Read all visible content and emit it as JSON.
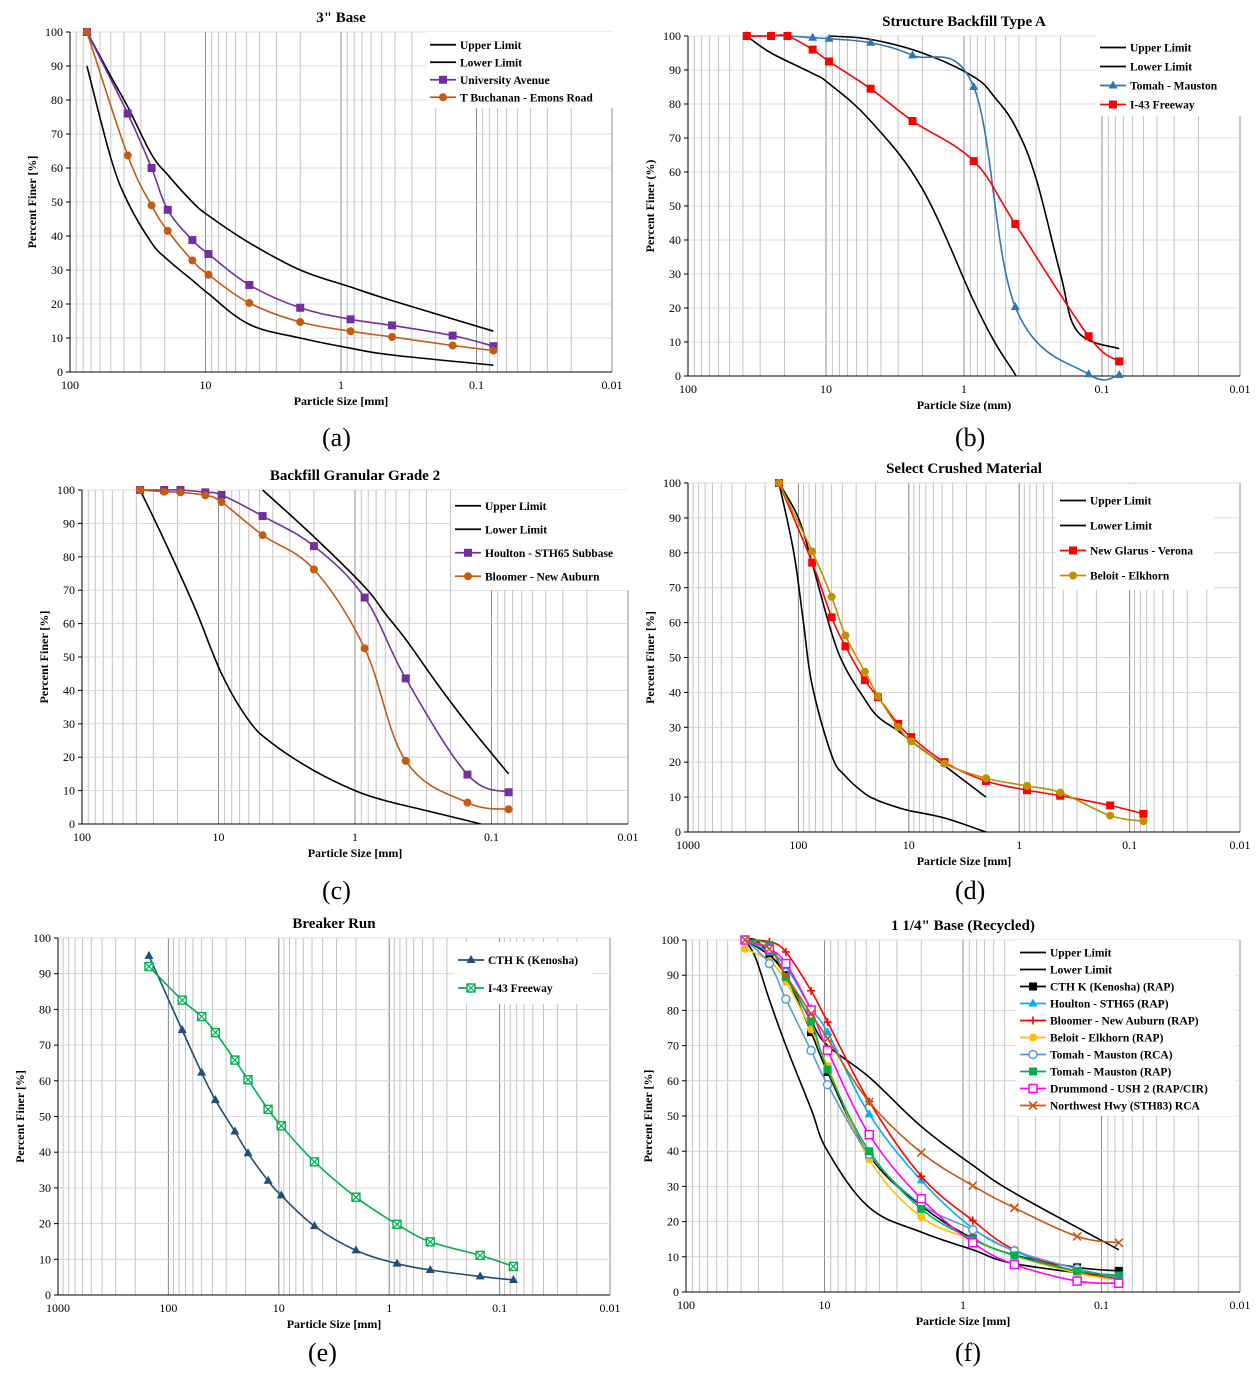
{
  "chart_data": [
    {
      "id": "a",
      "type": "line",
      "panel_label": "(a)",
      "title": "3\" Base",
      "xlabel": "Particle Size [mm]",
      "ylabel": "Percent Finer [%]",
      "x_scale": "log",
      "x_reversed": true,
      "xlim": [
        100,
        0.01
      ],
      "ylim": [
        0,
        100
      ],
      "yticks": [
        0,
        10,
        20,
        30,
        40,
        50,
        60,
        70,
        80,
        90,
        100
      ],
      "xtick_labels": [
        "100",
        "10",
        "1",
        "0.1",
        "0.01"
      ],
      "legend_position": "top-right",
      "series": [
        {
          "name": "Upper Limit",
          "color": "#000000",
          "marker": "none",
          "x": [
            75,
            50,
            37.5,
            25,
            19,
            12.5,
            9.5,
            4.75,
            2,
            0.85,
            0.42,
            0.075
          ],
          "y": [
            100,
            87,
            78,
            64,
            58,
            50,
            46,
            38,
            30,
            25,
            21,
            12
          ]
        },
        {
          "name": "Lower Limit",
          "color": "#000000",
          "marker": "none",
          "x": [
            75,
            50,
            37.5,
            25,
            19,
            12.5,
            9.5,
            4.75,
            2,
            0.85,
            0.42,
            0.075
          ],
          "y": [
            90,
            63,
            50,
            38,
            33,
            27,
            23,
            14,
            10,
            7,
            5,
            2
          ]
        },
        {
          "name": "University Avenue",
          "color": "#7030A0",
          "marker": "square",
          "x": [
            75,
            37.5,
            25,
            19,
            12.5,
            9.5,
            4.75,
            2,
            0.85,
            0.42,
            0.15,
            0.075
          ],
          "y": [
            100,
            76,
            60,
            47.7,
            38.8,
            34.7,
            25.6,
            18.9,
            15.5,
            13.7,
            10.7,
            7.6
          ]
        },
        {
          "name": "T Buchanan - Emons Road",
          "color": "#C55A11",
          "marker": "circle",
          "x": [
            75,
            37.5,
            25,
            19,
            12.5,
            9.5,
            4.75,
            2,
            0.85,
            0.42,
            0.15,
            0.075
          ],
          "y": [
            100,
            63.7,
            49,
            41.5,
            32.8,
            28.6,
            20.3,
            14.7,
            12,
            10.3,
            7.8,
            6.3
          ]
        }
      ]
    },
    {
      "id": "b",
      "type": "line",
      "panel_label": "(b)",
      "title": "Structure Backfill Type A",
      "xlabel": "Particle Size (mm)",
      "ylabel": "Percent Finer (%)",
      "x_scale": "log",
      "x_reversed": true,
      "xlim": [
        100,
        0.01
      ],
      "ylim": [
        0,
        100
      ],
      "yticks": [
        0,
        10,
        20,
        30,
        40,
        50,
        60,
        70,
        80,
        90,
        100
      ],
      "xtick_labels": [
        "100",
        "10",
        "1",
        "0.1",
        "0.01"
      ],
      "legend_position": "top-right",
      "series": [
        {
          "name": "Upper Limit",
          "color": "#000000",
          "marker": "none",
          "x": [
            9.5,
            4.75,
            2,
            0.85,
            0.6,
            0.42,
            0.3,
            0.2,
            0.15,
            0.075
          ],
          "y": [
            100,
            99,
            95,
            88,
            82,
            73,
            58,
            30,
            13,
            8
          ]
        },
        {
          "name": "Lower Limit",
          "color": "#000000",
          "marker": "none",
          "x": [
            37.5,
            25,
            12.5,
            9.5,
            4.75,
            2,
            0.85,
            0.6,
            0.45,
            0.42
          ],
          "y": [
            100,
            95,
            89,
            86,
            75,
            55,
            22,
            10,
            2,
            0
          ]
        },
        {
          "name": "Tomah - Mauston",
          "color": "#2E75B6",
          "marker": "triangle",
          "x": [
            37.5,
            25,
            19,
            12.5,
            9.5,
            4.75,
            2.36,
            0.85,
            0.425,
            0.125,
            0.075
          ],
          "y": [
            100,
            100,
            100,
            99.5,
            99.2,
            98,
            94.3,
            85,
            20.3,
            0.5,
            0.3
          ]
        },
        {
          "name": "I-43 Freeway",
          "color": "#FF0000",
          "marker": "square",
          "x": [
            37.5,
            25,
            19,
            12.5,
            9.5,
            4.75,
            2.36,
            0.85,
            0.425,
            0.125,
            0.075
          ],
          "y": [
            100,
            100,
            100,
            96,
            92.5,
            84.5,
            75,
            63.2,
            44.7,
            11.7,
            4.3
          ]
        }
      ]
    },
    {
      "id": "c",
      "type": "line",
      "panel_label": "(c)",
      "title": "Backfill Granular Grade 2",
      "xlabel": "Particle Size [mm]",
      "ylabel": "Percent Finer [%]",
      "x_scale": "log",
      "x_reversed": true,
      "xlim": [
        100,
        0.01
      ],
      "ylim": [
        0,
        100
      ],
      "yticks": [
        0,
        10,
        20,
        30,
        40,
        50,
        60,
        70,
        80,
        90,
        100
      ],
      "xtick_labels": [
        "100",
        "10",
        "1",
        "0.1",
        "0.01"
      ],
      "legend_position": "top-right",
      "series": [
        {
          "name": "Upper Limit",
          "color": "#000000",
          "marker": "none",
          "x": [
            4.75,
            2,
            0.85,
            0.6,
            0.42,
            0.25,
            0.15,
            0.075
          ],
          "y": [
            100,
            86,
            71,
            63,
            55,
            42,
            30,
            15
          ]
        },
        {
          "name": "Lower Limit",
          "color": "#000000",
          "marker": "none",
          "x": [
            37.5,
            25,
            15,
            9.5,
            6,
            4,
            2,
            1,
            0.6,
            0.3,
            0.15,
            0.12
          ],
          "y": [
            100,
            85,
            65,
            45,
            31,
            24,
            16,
            10,
            7,
            4,
            1,
            0
          ]
        },
        {
          "name": "Houlton - STH65 Subbase",
          "color": "#7030A0",
          "marker": "square",
          "x": [
            37.5,
            25,
            19,
            12.5,
            9.5,
            4.75,
            2,
            0.85,
            0.425,
            0.15,
            0.075
          ],
          "y": [
            100,
            100,
            100,
            99.3,
            98.5,
            92.2,
            83.2,
            67.8,
            43.6,
            14.8,
            9.5
          ]
        },
        {
          "name": "Bloomer - New Auburn",
          "color": "#C55A11",
          "marker": "circle",
          "x": [
            37.5,
            25,
            19,
            12.5,
            9.5,
            4.75,
            2,
            0.85,
            0.425,
            0.15,
            0.075
          ],
          "y": [
            100,
            99.5,
            99.3,
            98.4,
            96.4,
            86.5,
            76.2,
            52.6,
            18.9,
            6.4,
            4.4
          ]
        }
      ]
    },
    {
      "id": "d",
      "type": "line",
      "panel_label": "(d)",
      "title": "Select Crushed Material",
      "xlabel": "Particle Size [mm]",
      "ylabel": "Percent Finer [%]",
      "x_scale": "log",
      "x_reversed": true,
      "xlim": [
        1000,
        0.01
      ],
      "ylim": [
        0,
        100
      ],
      "yticks": [
        0,
        10,
        20,
        30,
        40,
        50,
        60,
        70,
        80,
        90,
        100
      ],
      "xtick_labels": [
        "1000",
        "100",
        "10",
        "1",
        "0.1",
        "0.01"
      ],
      "legend_position": "top-right",
      "series": [
        {
          "name": "Upper Limit",
          "color": "#000000",
          "marker": "none",
          "x": [
            150,
            100,
            75,
            50,
            37.5,
            25,
            19,
            12.5,
            9.5,
            4.75,
            2
          ],
          "y": [
            100,
            90,
            77,
            57,
            47,
            38,
            33,
            29,
            26,
            19,
            10
          ]
        },
        {
          "name": "Lower Limit",
          "color": "#000000",
          "marker": "none",
          "x": [
            150,
            110,
            90,
            75,
            50,
            37.5,
            25,
            19,
            12.5,
            9.5,
            4.75,
            2
          ],
          "y": [
            100,
            80,
            60,
            42,
            22,
            16,
            11,
            9,
            7,
            6,
            4,
            0
          ]
        },
        {
          "name": "New Glarus - Verona",
          "color": "#FF0000",
          "marker": "square",
          "x": [
            150,
            75,
            50,
            37.5,
            25,
            19,
            12.5,
            9.5,
            4.75,
            2,
            0.85,
            0.425,
            0.15,
            0.075
          ],
          "y": [
            100,
            77.2,
            61.5,
            53.2,
            43.5,
            38.6,
            31,
            27.2,
            20,
            14.6,
            12,
            10.4,
            7.6,
            5.2
          ]
        },
        {
          "name": "Beloit - Elkhorn",
          "color": "#BF9000",
          "marker": "circle",
          "x": [
            150,
            75,
            50,
            37.5,
            25,
            19,
            12.5,
            9.5,
            4.75,
            2,
            0.85,
            0.425,
            0.15,
            0.075
          ],
          "y": [
            100,
            80.4,
            67.4,
            56.3,
            45.9,
            38.9,
            30.1,
            26,
            19.6,
            15.4,
            13.2,
            11.3,
            4.7,
            3.1
          ]
        }
      ]
    },
    {
      "id": "e",
      "type": "line",
      "panel_label": "(e)",
      "title": "Breaker Run",
      "xlabel": "Particle Size [mm]",
      "ylabel": "Percent Finer [%]",
      "x_scale": "log",
      "x_reversed": true,
      "xlim": [
        1000,
        0.01
      ],
      "ylim": [
        0,
        100
      ],
      "yticks": [
        0,
        10,
        20,
        30,
        40,
        50,
        60,
        70,
        80,
        90,
        100
      ],
      "xtick_labels": [
        "1000",
        "100",
        "10",
        "1",
        "0.1",
        "0.01"
      ],
      "legend_position": "top-right",
      "series": [
        {
          "name": "CTH K (Kenosha)",
          "color": "#1F4E79",
          "marker": "triangle",
          "x": [
            150,
            75,
            50,
            37.5,
            25,
            19,
            12.5,
            9.5,
            4.75,
            2,
            0.85,
            0.425,
            0.15,
            0.075
          ],
          "y": [
            95,
            74.2,
            62.3,
            54.6,
            45.8,
            39.7,
            32,
            27.9,
            19.3,
            12.5,
            8.8,
            7,
            5.2,
            4.2
          ]
        },
        {
          "name": "I-43 Freeway",
          "color": "#00B050",
          "marker": "boxx",
          "x": [
            150,
            75,
            50,
            37.5,
            25,
            19,
            12.5,
            9.5,
            4.75,
            2,
            0.85,
            0.425,
            0.15,
            0.075
          ],
          "y": [
            92,
            82.6,
            78,
            73.5,
            65.8,
            60.3,
            52,
            47.4,
            37.3,
            27.4,
            19.8,
            14.9,
            11.1,
            8
          ]
        }
      ]
    },
    {
      "id": "f",
      "type": "line",
      "panel_label": "(f)",
      "title": "1 1/4\" Base (Recycled)",
      "xlabel": "Particle Size [mm]",
      "ylabel": "Percent Finer [%]",
      "x_scale": "log",
      "x_reversed": true,
      "xlim": [
        100,
        0.01
      ],
      "ylim": [
        0,
        100
      ],
      "yticks": [
        0,
        10,
        20,
        30,
        40,
        50,
        60,
        70,
        80,
        90,
        100
      ],
      "xtick_labels": [
        "100",
        "10",
        "1",
        "0.1",
        "0.01"
      ],
      "legend_position": "top-right",
      "series": [
        {
          "name": "Upper Limit",
          "color": "#000000",
          "marker": "none",
          "x": [
            37.5,
            31.5,
            25,
            19,
            12.5,
            9.5,
            4.75,
            2,
            0.85,
            0.42,
            0.075
          ],
          "y": [
            100,
            100,
            96,
            90,
            77,
            70,
            61,
            47,
            36,
            28,
            12
          ]
        },
        {
          "name": "Lower Limit",
          "color": "#000000",
          "marker": "none",
          "x": [
            37.5,
            31.5,
            25,
            19,
            12.5,
            9.5,
            4.75,
            2,
            0.85,
            0.42,
            0.075
          ],
          "y": [
            100,
            95,
            83,
            70,
            52,
            40,
            24,
            17,
            12,
            8,
            4
          ]
        },
        {
          "name": "CTH K (Kenosha) (RAP)",
          "color": "#000000",
          "marker": "square",
          "x": [
            37.5,
            25,
            19,
            12.5,
            9.5,
            4.75,
            2,
            0.85,
            0.425,
            0.15,
            0.075
          ],
          "y": [
            100,
            95.6,
            90,
            73.8,
            62.5,
            38.8,
            24.5,
            15.2,
            10.5,
            7,
            6
          ]
        },
        {
          "name": "Houlton - STH65 (RAP)",
          "color": "#00B0F0",
          "marker": "triangle",
          "x": [
            37.5,
            25,
            19,
            12.5,
            9.5,
            4.75,
            2,
            0.85,
            0.425,
            0.15,
            0.075
          ],
          "y": [
            100,
            96.5,
            92.5,
            80.5,
            73.8,
            50.5,
            31.7,
            18.1,
            11.6,
            5.5,
            4.3
          ]
        },
        {
          "name": "Bloomer - New Auburn (RAP)",
          "color": "#FF0000",
          "marker": "plus",
          "x": [
            37.5,
            25,
            19,
            12.5,
            9.5,
            4.75,
            2,
            0.85,
            0.425,
            0.15,
            0.075
          ],
          "y": [
            100,
            99.5,
            96.6,
            85.6,
            76.7,
            54.1,
            32.9,
            20.3,
            12,
            5.7,
            3.7
          ]
        },
        {
          "name": "Beloit - Elkhorn (RAP)",
          "color": "#FFC000",
          "marker": "circle",
          "x": [
            37.5,
            25,
            19,
            12.5,
            9.5,
            4.75,
            2,
            0.85,
            0.425,
            0.15,
            0.075
          ],
          "y": [
            97.5,
            94,
            88.2,
            74.6,
            64.2,
            37.7,
            21.3,
            14.9,
            10.3,
            5.4,
            3.3
          ]
        },
        {
          "name": "Tomah - Mauston (RCA)",
          "color": "#5B9BD5",
          "marker": "opencircle",
          "x": [
            37.5,
            25,
            19,
            12.5,
            9.5,
            4.75,
            2,
            0.85,
            0.425,
            0.15,
            0.075
          ],
          "y": [
            100,
            93.3,
            83.2,
            68.6,
            58.9,
            39.1,
            24.9,
            17.7,
            11.7,
            6.6,
            4.2
          ]
        },
        {
          "name": "Tomah - Mauston (RAP)",
          "color": "#00B050",
          "marker": "square",
          "x": [
            37.5,
            25,
            19,
            12.5,
            9.5,
            4.75,
            2,
            0.85,
            0.425,
            0.15,
            0.075
          ],
          "y": [
            100,
            98.5,
            89.5,
            76.8,
            63.2,
            40,
            23.6,
            15,
            10.4,
            6,
            4.7
          ]
        },
        {
          "name": "Drummond - USH 2 (RAP/CIR)",
          "color": "#FF00FF",
          "marker": "opensquare",
          "x": [
            37.5,
            25,
            19,
            12.5,
            9.5,
            4.75,
            2,
            0.85,
            0.425,
            0.15,
            0.075
          ],
          "y": [
            100,
            97.4,
            93.3,
            80.1,
            68.7,
            44.7,
            26.5,
            14,
            7.8,
            3.1,
            2.5
          ]
        },
        {
          "name": "Northwest Hwy (STH83) RCA",
          "color": "#C55A11",
          "marker": "x",
          "x": [
            37.5,
            25,
            19,
            12.5,
            9.5,
            4.75,
            2,
            0.85,
            0.425,
            0.15,
            0.075
          ],
          "y": [
            100,
            97.5,
            90,
            79,
            72,
            54,
            39.6,
            30.2,
            23.9,
            15.8,
            14
          ]
        }
      ]
    }
  ]
}
